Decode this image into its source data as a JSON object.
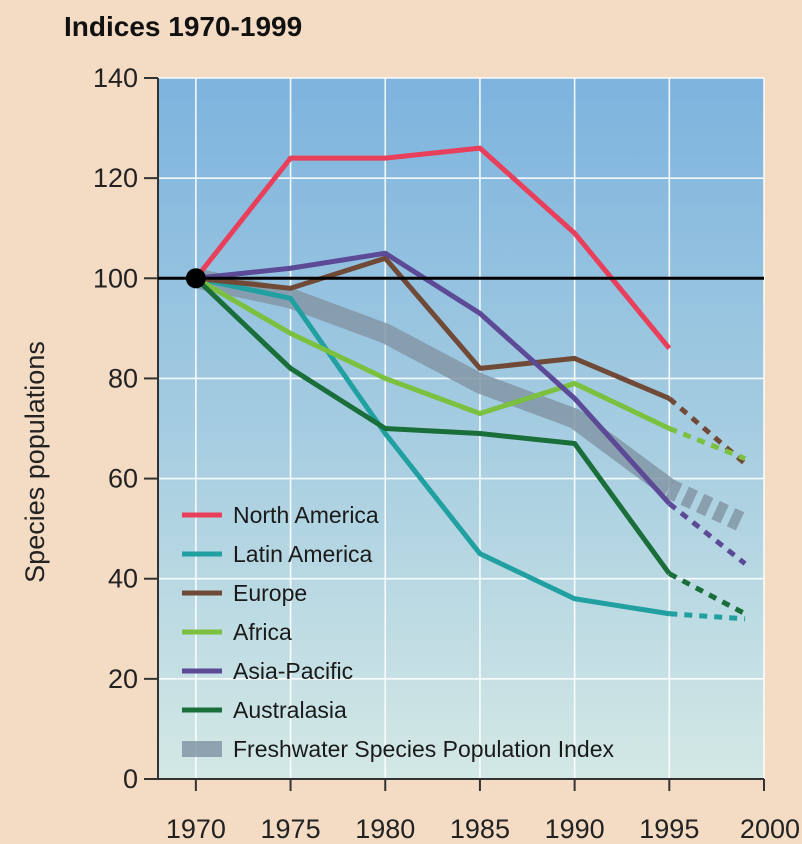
{
  "chart_data": {
    "type": "line",
    "title": "Indices 1970-1999",
    "xlabel": "",
    "ylabel": "Species populations",
    "xlim": [
      1968,
      2000
    ],
    "ylim": [
      0,
      140
    ],
    "x_ticks": [
      1970,
      1975,
      1980,
      1985,
      1990,
      1995,
      2000
    ],
    "y_ticks": [
      0,
      20,
      40,
      60,
      80,
      100,
      120,
      140
    ],
    "grid": true,
    "legend_position": "bottom-left",
    "baseline": 100,
    "baseline_color": "#000000",
    "series": [
      {
        "name": "North America",
        "color": "#e8405a",
        "points": [
          [
            1970,
            100
          ],
          [
            1975,
            124
          ],
          [
            1980,
            124
          ],
          [
            1985,
            126
          ],
          [
            1990,
            109
          ],
          [
            1995,
            86
          ]
        ],
        "projection": []
      },
      {
        "name": "Latin America",
        "color": "#20a0a0",
        "points": [
          [
            1970,
            100
          ],
          [
            1975,
            96
          ],
          [
            1980,
            69
          ],
          [
            1985,
            45
          ],
          [
            1990,
            36
          ],
          [
            1995,
            33
          ]
        ],
        "projection": [
          [
            1995,
            33
          ],
          [
            1999,
            32
          ]
        ]
      },
      {
        "name": "Europe",
        "color": "#704a36",
        "points": [
          [
            1970,
            100
          ],
          [
            1975,
            98
          ],
          [
            1980,
            104
          ],
          [
            1985,
            82
          ],
          [
            1990,
            84
          ],
          [
            1995,
            76
          ]
        ],
        "projection": [
          [
            1995,
            76
          ],
          [
            1999,
            63
          ]
        ]
      },
      {
        "name": "Africa",
        "color": "#7cc040",
        "points": [
          [
            1970,
            100
          ],
          [
            1975,
            89
          ],
          [
            1980,
            80
          ],
          [
            1985,
            73
          ],
          [
            1990,
            79
          ],
          [
            1995,
            70
          ]
        ],
        "projection": [
          [
            1995,
            70
          ],
          [
            1999,
            64
          ]
        ]
      },
      {
        "name": "Asia-Pacific",
        "color": "#5c4a96",
        "points": [
          [
            1970,
            100
          ],
          [
            1975,
            102
          ],
          [
            1980,
            105
          ],
          [
            1985,
            93
          ],
          [
            1990,
            76
          ],
          [
            1995,
            55
          ]
        ],
        "projection": [
          [
            1995,
            55
          ],
          [
            1999,
            43
          ]
        ]
      },
      {
        "name": "Australasia",
        "color": "#1a6e3a",
        "points": [
          [
            1970,
            100
          ],
          [
            1975,
            82
          ],
          [
            1980,
            70
          ],
          [
            1985,
            69
          ],
          [
            1990,
            67
          ],
          [
            1995,
            41
          ]
        ],
        "projection": [
          [
            1995,
            41
          ],
          [
            1999,
            33
          ]
        ]
      },
      {
        "name": "Freshwater Species Population Index",
        "color": "#8296a6",
        "thick": true,
        "points": [
          [
            1970,
            100
          ],
          [
            1975,
            96
          ],
          [
            1980,
            89
          ],
          [
            1985,
            79
          ],
          [
            1990,
            72
          ],
          [
            1995,
            58
          ]
        ],
        "projection": [
          [
            1995,
            58
          ],
          [
            1999,
            51
          ]
        ]
      }
    ]
  }
}
